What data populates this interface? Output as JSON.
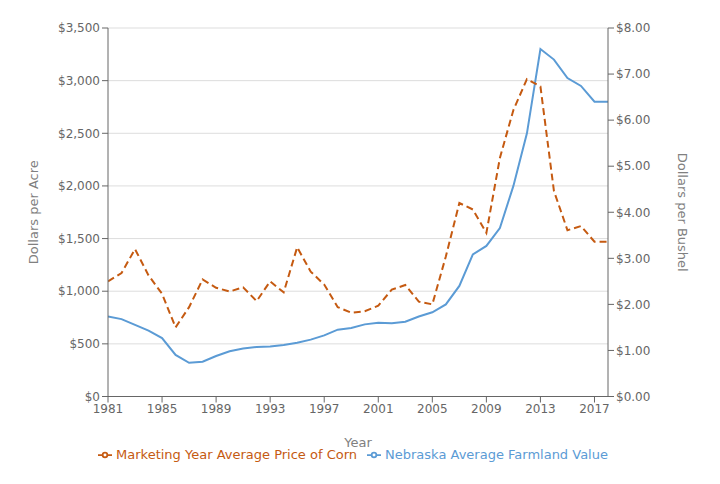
{
  "chart_data": {
    "type": "line",
    "xlabel": "Year",
    "ylabel": "Dollars per Acre",
    "y2label": "Dollars per Bushel",
    "x": [
      1981,
      1982,
      1983,
      1984,
      1985,
      1986,
      1987,
      1988,
      1989,
      1990,
      1991,
      1992,
      1993,
      1994,
      1995,
      1996,
      1997,
      1998,
      1999,
      2000,
      2001,
      2002,
      2003,
      2004,
      2005,
      2006,
      2007,
      2008,
      2009,
      2010,
      2011,
      2012,
      2013,
      2014,
      2015,
      2016,
      2017,
      2018
    ],
    "series": [
      {
        "name": "Nebraska Average Farmland Value",
        "color": "#5B9BD5",
        "line_style": "solid",
        "values": [
          760,
          735,
          680,
          625,
          555,
          395,
          320,
          330,
          385,
          430,
          455,
          470,
          475,
          490,
          510,
          540,
          580,
          635,
          650,
          685,
          700,
          695,
          710,
          760,
          800,
          875,
          1050,
          1350,
          1430,
          1600,
          2000,
          2500,
          3300,
          3200,
          3025,
          2950,
          2800,
          2800
        ]
      },
      {
        "name": "Marketing Year Average Price of Corn",
        "color": "#C55A11",
        "line_style": "dashed",
        "axis": "y2",
        "values": [
          2.5,
          2.68,
          3.2,
          2.63,
          2.23,
          1.5,
          1.94,
          2.54,
          2.36,
          2.28,
          2.37,
          2.07,
          2.5,
          2.26,
          3.24,
          2.71,
          2.43,
          1.94,
          1.82,
          1.85,
          1.97,
          2.32,
          2.42,
          2.06,
          2.0,
          3.04,
          4.2,
          4.06,
          3.55,
          5.18,
          6.22,
          6.89,
          6.73,
          4.46,
          3.61,
          3.7,
          3.36,
          3.36
        ]
      }
    ],
    "xlim": [
      1981,
      2018
    ],
    "xticks": [
      1981,
      1985,
      1989,
      1993,
      1997,
      2001,
      2005,
      2009,
      2013,
      2017
    ],
    "ylim": [
      0,
      3500
    ],
    "yticks": [
      {
        "value": 0,
        "label": "$0"
      },
      {
        "value": 500,
        "label": "$500"
      },
      {
        "value": 1000,
        "label": "$1,000"
      },
      {
        "value": 1500,
        "label": "$1,500"
      },
      {
        "value": 2000,
        "label": "$2,000"
      },
      {
        "value": 2500,
        "label": "$2,500"
      },
      {
        "value": 3000,
        "label": "$3,000"
      },
      {
        "value": 3500,
        "label": "$3,500"
      }
    ],
    "y2lim": [
      0.0,
      8.0
    ],
    "y2ticks": [
      {
        "value": 0.0,
        "label": "$0.00"
      },
      {
        "value": 1.0,
        "label": "$1.00"
      },
      {
        "value": 2.0,
        "label": "$2.00"
      },
      {
        "value": 3.0,
        "label": "$3.00"
      },
      {
        "value": 4.0,
        "label": "$4.00"
      },
      {
        "value": 5.0,
        "label": "$5.00"
      },
      {
        "value": 6.0,
        "label": "$6.00"
      },
      {
        "value": 7.0,
        "label": "$7.00"
      },
      {
        "value": 8.0,
        "label": "$8.00"
      }
    ],
    "grid": true,
    "legend": "bottom"
  }
}
